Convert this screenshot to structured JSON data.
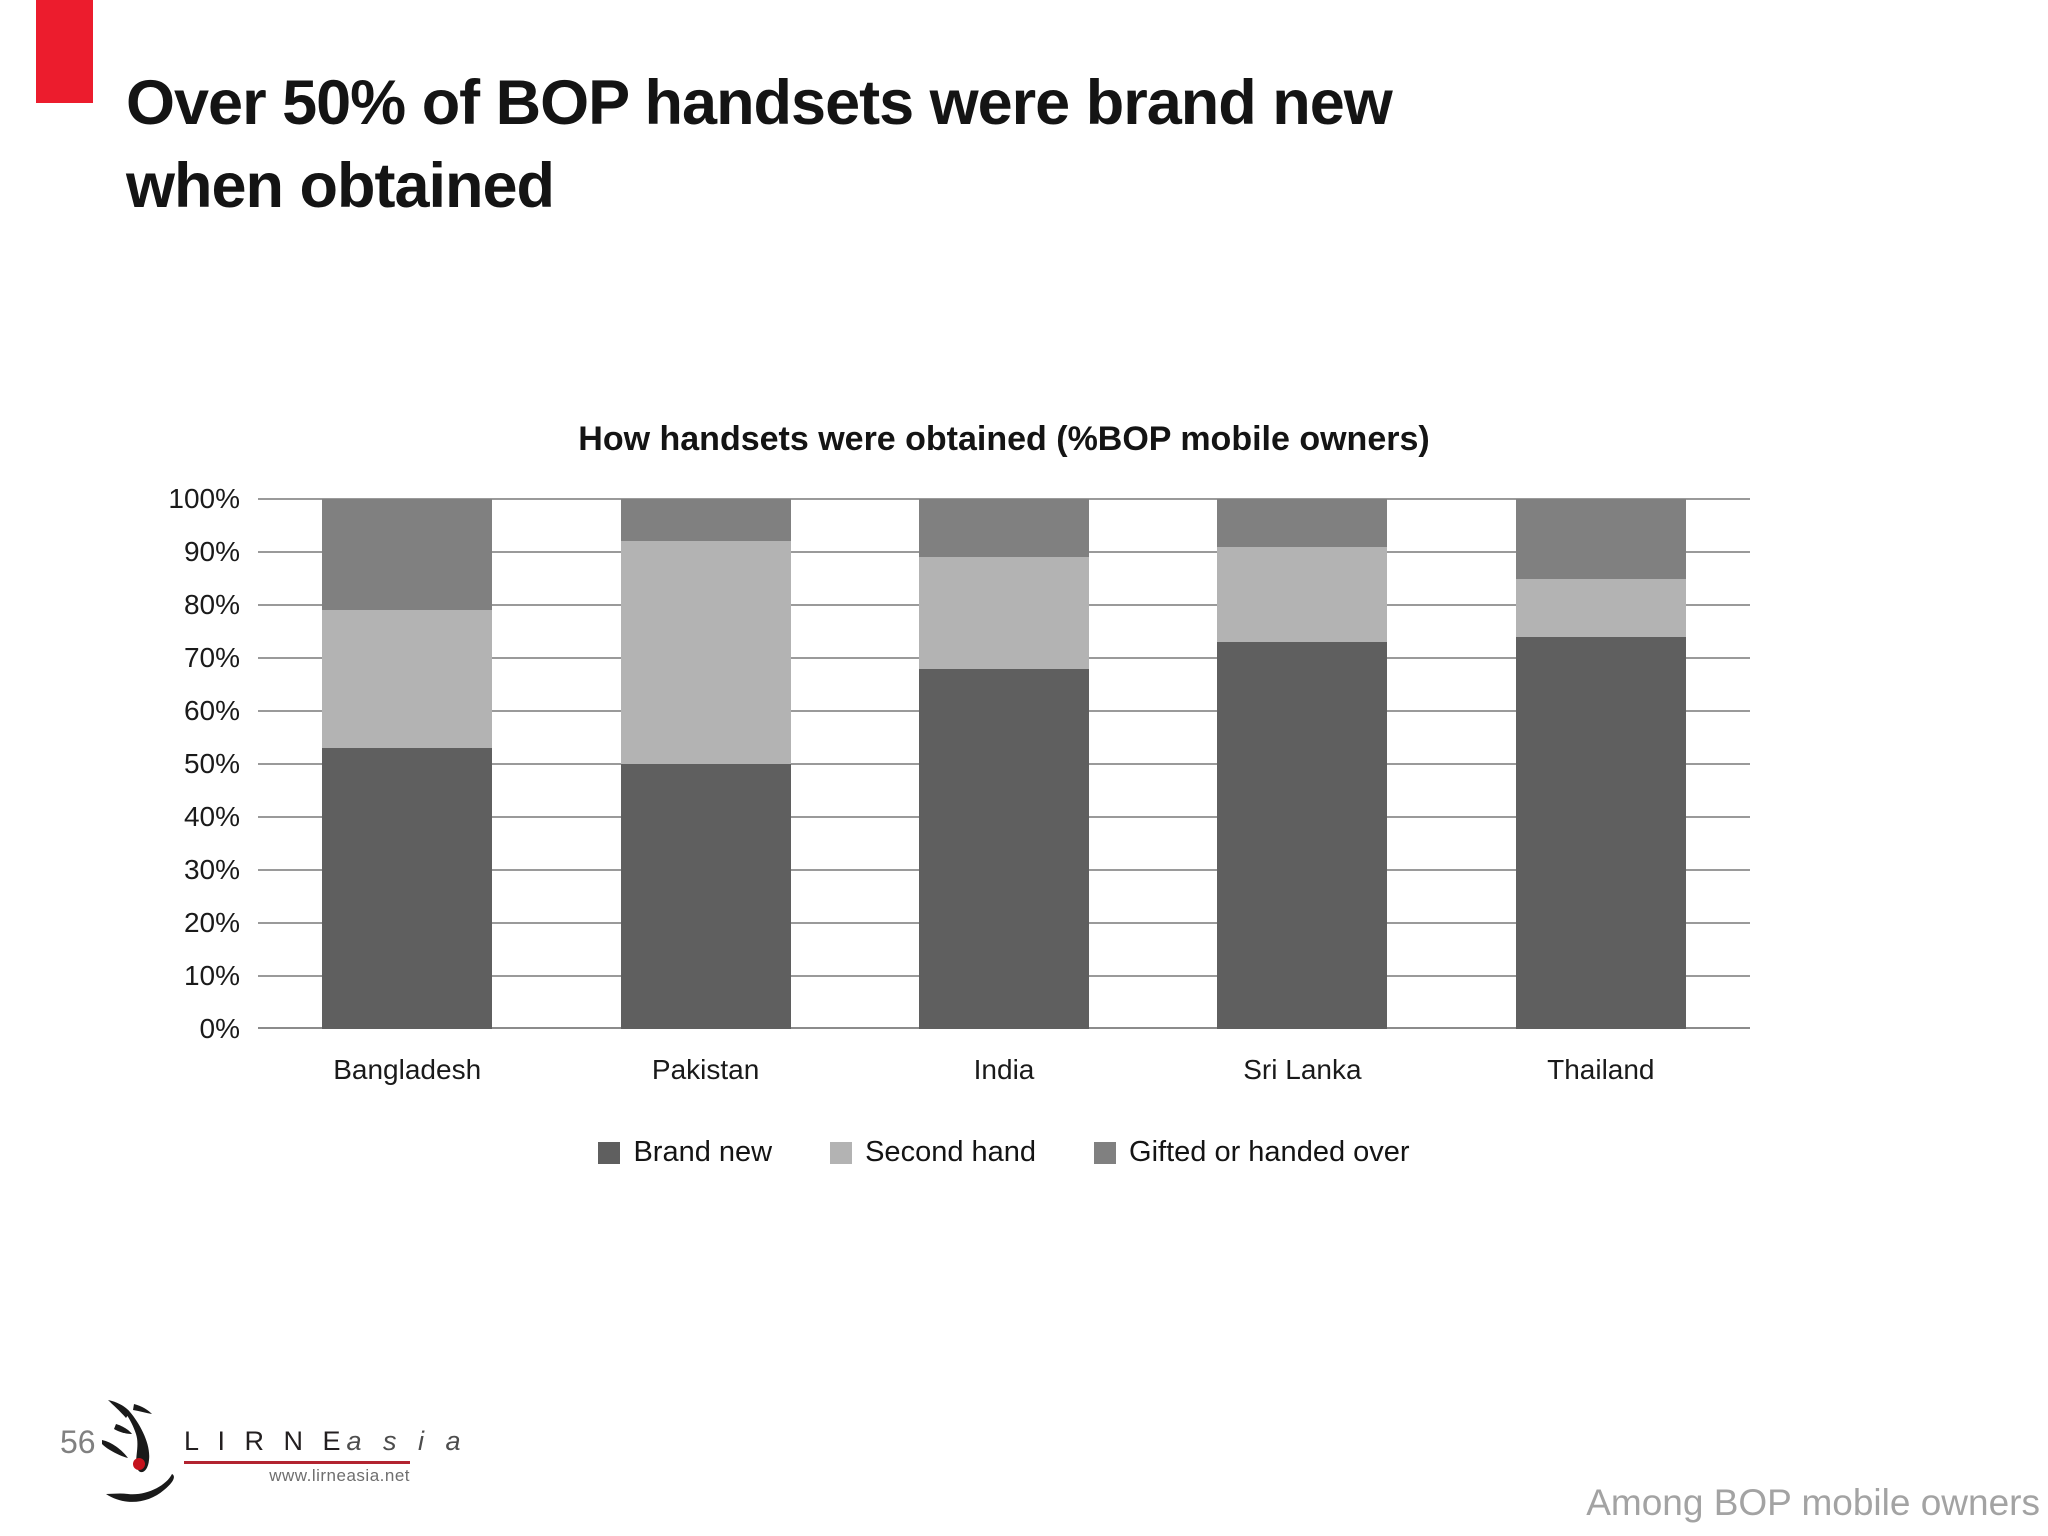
{
  "slide": {
    "title_lines": [
      "Over 50% of BOP handsets were brand new",
      "when obtained"
    ],
    "page_number": "56",
    "footnote": "Among BOP mobile owners"
  },
  "logo": {
    "name_main": "L I R N E",
    "name_accent": "a s i a",
    "url": "www.lirneasia.net"
  },
  "colors": {
    "brand_new": "#5f5f5f",
    "second_hand": "#b3b3b3",
    "gifted": "#808080",
    "gridline": "#9a9a9a",
    "red_accent": "#ec1c2d"
  },
  "chart_data": {
    "type": "bar",
    "stacked": true,
    "title": "How handsets were obtained (%BOP mobile owners)",
    "categories": [
      "Bangladesh",
      "Pakistan",
      "India",
      "Sri Lanka",
      "Thailand"
    ],
    "series": [
      {
        "name": "Brand new",
        "color": "#5f5f5f",
        "values": [
          53,
          50,
          68,
          73,
          74
        ]
      },
      {
        "name": "Second hand",
        "color": "#b3b3b3",
        "values": [
          26,
          42,
          21,
          18,
          11
        ]
      },
      {
        "name": "Gifted or handed over",
        "color": "#808080",
        "values": [
          21,
          8,
          11,
          9,
          15
        ]
      }
    ],
    "xlabel": "",
    "ylabel": "",
    "ylim": [
      0,
      100
    ],
    "ytick_step": 10,
    "yticks": [
      "0%",
      "10%",
      "20%",
      "30%",
      "40%",
      "50%",
      "60%",
      "70%",
      "80%",
      "90%",
      "100%"
    ],
    "grid": true,
    "legend_position": "bottom"
  }
}
